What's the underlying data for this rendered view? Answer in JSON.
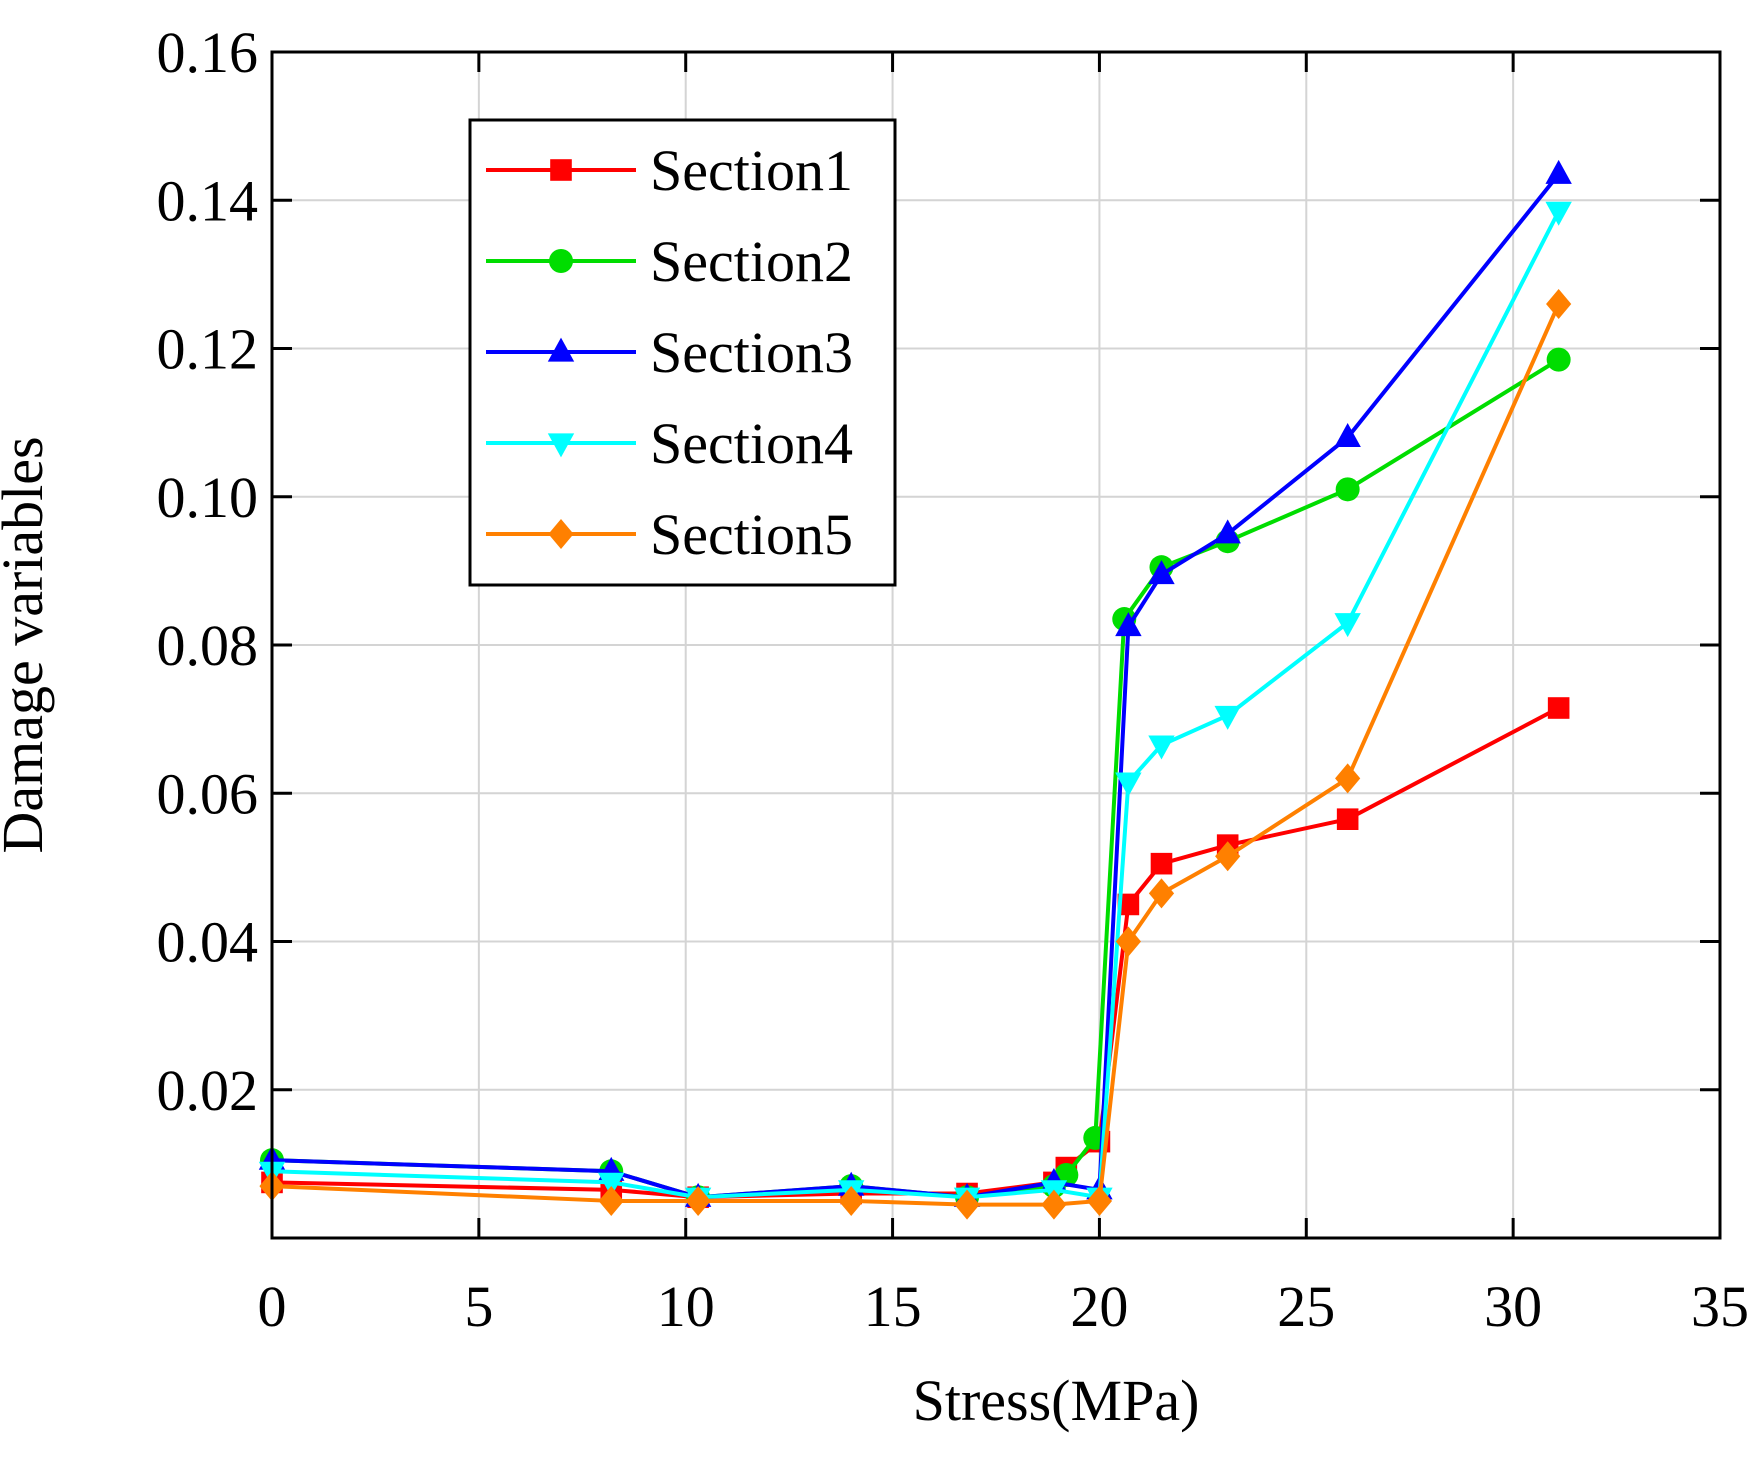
{
  "chart_data": {
    "type": "line",
    "title": "",
    "xlabel": "Stress(MPa)",
    "ylabel": "Damage variables",
    "xlim": [
      0,
      35
    ],
    "ylim": [
      0,
      0.16
    ],
    "xticks": [
      0,
      5,
      10,
      15,
      20,
      25,
      30,
      35
    ],
    "xtick_labels": [
      "0",
      "5",
      "10",
      "15",
      "20",
      "25",
      "30",
      "35"
    ],
    "yticks": [
      0.02,
      0.04,
      0.06,
      0.08,
      0.1,
      0.12,
      0.14,
      0.16
    ],
    "ytick_labels": [
      "0.02",
      "0.04",
      "0.06",
      "0.08",
      "0.10",
      "0.12",
      "0.14",
      "0.16"
    ],
    "grid": true,
    "legend_position": "top-left",
    "series": [
      {
        "name": "Section1",
        "color": "#ff0000",
        "marker": "square",
        "x": [
          0,
          8.2,
          10.3,
          14.0,
          16.8,
          18.9,
          19.2,
          20.0,
          20.7,
          21.5,
          23.1,
          26.0,
          31.1
        ],
        "y": [
          0.0075,
          0.0065,
          0.0055,
          0.006,
          0.006,
          0.0075,
          0.0095,
          0.013,
          0.045,
          0.0505,
          0.053,
          0.0565,
          0.0715
        ]
      },
      {
        "name": "Section2",
        "color": "#00dd00",
        "marker": "circle",
        "x": [
          0,
          8.2,
          10.3,
          14.0,
          16.8,
          18.9,
          19.2,
          19.9,
          20.6,
          21.5,
          23.1,
          26.0,
          31.1
        ],
        "y": [
          0.0105,
          0.009,
          0.0055,
          0.007,
          0.0055,
          0.007,
          0.0085,
          0.0135,
          0.0835,
          0.0905,
          0.094,
          0.101,
          0.1185
        ]
      },
      {
        "name": "Section3",
        "color": "#0000ff",
        "marker": "triangle-up",
        "x": [
          0,
          8.2,
          10.3,
          14.0,
          16.8,
          18.9,
          20.0,
          20.7,
          21.5,
          23.1,
          26.0,
          31.1
        ],
        "y": [
          0.0105,
          0.009,
          0.0055,
          0.007,
          0.0055,
          0.0075,
          0.0065,
          0.0825,
          0.0895,
          0.095,
          0.108,
          0.1435
        ]
      },
      {
        "name": "Section4",
        "color": "#00ffff",
        "marker": "triangle-down",
        "x": [
          0,
          8.2,
          10.3,
          14.0,
          16.8,
          18.9,
          20.0,
          20.7,
          21.5,
          23.1,
          26.0,
          31.1
        ],
        "y": [
          0.009,
          0.0075,
          0.0055,
          0.0065,
          0.0055,
          0.0065,
          0.0055,
          0.0615,
          0.0665,
          0.0705,
          0.083,
          0.1385
        ]
      },
      {
        "name": "Section5",
        "color": "#ff8000",
        "marker": "diamond",
        "x": [
          0,
          8.2,
          10.3,
          14.0,
          16.8,
          18.9,
          20.0,
          20.7,
          21.5,
          23.1,
          26.0,
          31.1
        ],
        "y": [
          0.007,
          0.005,
          0.005,
          0.005,
          0.0045,
          0.0045,
          0.005,
          0.04,
          0.0465,
          0.0515,
          0.062,
          0.126
        ]
      }
    ]
  }
}
